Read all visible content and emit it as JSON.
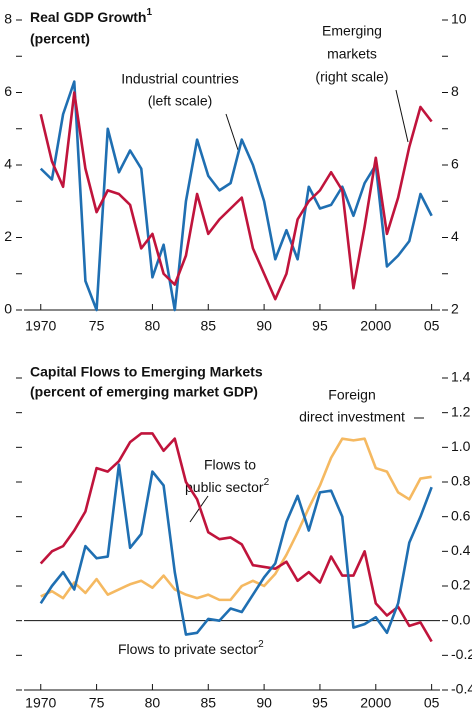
{
  "chart_data": [
    {
      "type": "line",
      "title": "Real GDP Growth",
      "title_footnote": "1",
      "subtitle": "(percent)",
      "annotations": [
        [
          "Industrial countries",
          "(left scale)"
        ],
        [
          "Emerging",
          "markets",
          "(right scale)"
        ]
      ],
      "x": [
        1970,
        1971,
        1972,
        1973,
        1974,
        1975,
        1976,
        1977,
        1978,
        1979,
        1980,
        1981,
        1982,
        1983,
        1984,
        1985,
        1986,
        1987,
        1988,
        1989,
        1990,
        1991,
        1992,
        1993,
        1994,
        1995,
        1996,
        1997,
        1998,
        1999,
        2000,
        2001,
        2002,
        2003,
        2004,
        2005
      ],
      "series": [
        {
          "color": "#1f6fb2",
          "values": [
            3.9,
            3.6,
            5.4,
            6.3,
            0.8,
            0.0,
            5.0,
            3.8,
            4.4,
            3.9,
            0.9,
            1.8,
            0.0,
            3.0,
            4.7,
            3.7,
            3.3,
            3.5,
            4.7,
            4.0,
            3.0,
            1.4,
            2.2,
            1.4,
            3.4,
            2.8,
            2.9,
            3.4,
            2.6,
            3.5,
            4.0,
            1.2,
            1.5,
            1.9,
            3.2,
            2.6
          ]
        },
        {
          "color": "#c0143c",
          "axis": "y2",
          "values": [
            7.4,
            6.1,
            5.4,
            8.0,
            5.9,
            4.7,
            5.3,
            5.2,
            4.9,
            3.7,
            4.1,
            3.0,
            2.7,
            3.5,
            5.2,
            4.1,
            4.5,
            4.8,
            5.1,
            3.7,
            3.0,
            2.3,
            3.0,
            4.5,
            5.0,
            5.3,
            5.8,
            5.3,
            2.6,
            4.3,
            6.2,
            4.1,
            5.1,
            6.5,
            7.6,
            7.2
          ]
        }
      ],
      "xlim": [
        1968.5,
        2005.75
      ],
      "xticks": [
        1970,
        {
          "value": 1975,
          "label": "75"
        },
        {
          "value": 1980,
          "label": "80"
        },
        {
          "value": 1985,
          "label": "85"
        },
        {
          "value": 1990,
          "label": "90"
        },
        {
          "value": 1995,
          "label": "95"
        },
        2000,
        {
          "value": 2005,
          "label": "05"
        }
      ],
      "ylim": [
        0,
        8
      ],
      "yticks": [
        0,
        2,
        4,
        6,
        8
      ],
      "yminor": [
        1,
        3,
        5,
        7
      ],
      "y2lim": [
        2,
        10
      ],
      "y2ticks": [
        2,
        4,
        6,
        8,
        10
      ],
      "y2minor": [
        3,
        5,
        7,
        9
      ]
    },
    {
      "type": "line",
      "title": "Capital Flows to Emerging Markets",
      "subtitle": "(percent of emerging market GDP)",
      "annotations": [
        [
          "Foreign",
          "direct investment"
        ],
        [
          "Flows to",
          "public sector"
        ],
        [
          "Flows to private sector"
        ]
      ],
      "annotation_footnote": "2",
      "x": [
        1970,
        1971,
        1972,
        1973,
        1974,
        1975,
        1976,
        1977,
        1978,
        1979,
        1980,
        1981,
        1982,
        1983,
        1984,
        1985,
        1986,
        1987,
        1988,
        1989,
        1990,
        1991,
        1992,
        1993,
        1994,
        1995,
        1996,
        1997,
        1998,
        1999,
        2000,
        2001,
        2002,
        2003,
        2004,
        2005
      ],
      "series": [
        {
          "color": "#f5b961",
          "values": [
            0.14,
            0.17,
            0.13,
            0.22,
            0.16,
            0.24,
            0.15,
            0.18,
            0.21,
            0.23,
            0.19,
            0.26,
            0.18,
            0.15,
            0.13,
            0.15,
            0.12,
            0.12,
            0.2,
            0.23,
            0.2,
            0.27,
            0.38,
            0.51,
            0.65,
            0.78,
            0.94,
            1.05,
            1.04,
            1.05,
            0.88,
            0.86,
            0.74,
            0.7,
            0.82,
            0.83
          ]
        },
        {
          "color": "#c0143c",
          "values": [
            0.33,
            0.4,
            0.43,
            0.52,
            0.63,
            0.88,
            0.86,
            0.92,
            1.03,
            1.08,
            1.08,
            0.98,
            1.05,
            0.8,
            0.7,
            0.51,
            0.47,
            0.48,
            0.44,
            0.32,
            0.31,
            0.3,
            0.34,
            0.23,
            0.28,
            0.22,
            0.37,
            0.26,
            0.26,
            0.4,
            0.1,
            0.03,
            0.08,
            -0.03,
            -0.01,
            -0.12
          ]
        },
        {
          "color": "#1f6fb2",
          "values": [
            0.1,
            0.2,
            0.28,
            0.18,
            0.43,
            0.36,
            0.37,
            0.9,
            0.42,
            0.5,
            0.86,
            0.78,
            0.28,
            -0.08,
            -0.07,
            0.01,
            0.0,
            0.07,
            0.05,
            0.15,
            0.25,
            0.33,
            0.57,
            0.72,
            0.52,
            0.74,
            0.75,
            0.6,
            -0.04,
            -0.02,
            0.02,
            -0.07,
            0.1,
            0.45,
            0.6,
            0.77
          ]
        }
      ],
      "xlim": [
        1968.5,
        2005.75
      ],
      "xticks": [
        1970,
        {
          "value": 1975,
          "label": "75"
        },
        {
          "value": 1980,
          "label": "80"
        },
        {
          "value": 1985,
          "label": "85"
        },
        {
          "value": 1990,
          "label": "90"
        },
        {
          "value": 1995,
          "label": "95"
        },
        2000,
        {
          "value": 2005,
          "label": "05"
        }
      ],
      "ylim": [
        -0.4,
        1.4
      ],
      "yticks": [
        1.4,
        1.2,
        {
          "value": 1,
          "label": "1.0"
        },
        0.8,
        0.6,
        0.4,
        0.2,
        {
          "value": 0,
          "label": "0.0"
        },
        -0.2,
        -0.4
      ],
      "y_axis_side": "right",
      "left_ticks": true,
      "zero_line": true
    }
  ]
}
